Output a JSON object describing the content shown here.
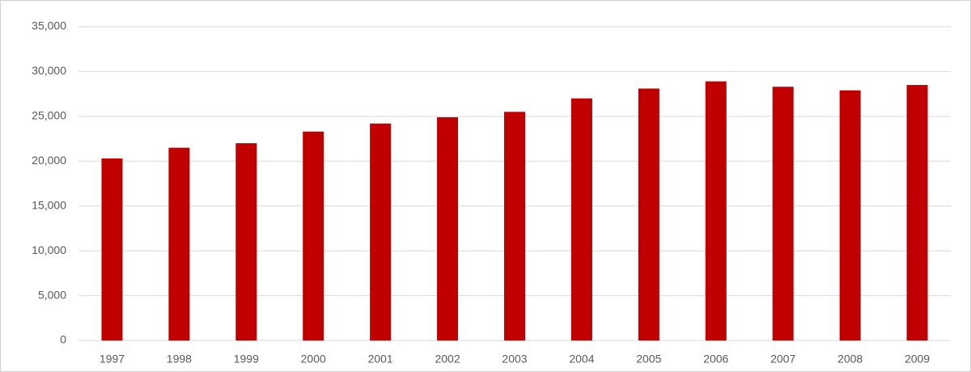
{
  "chart_data": {
    "type": "bar",
    "categories": [
      "1997",
      "1998",
      "1999",
      "2000",
      "2001",
      "2002",
      "2003",
      "2004",
      "2005",
      "2006",
      "2007",
      "2008",
      "2009"
    ],
    "values": [
      20300,
      21500,
      22000,
      23300,
      24200,
      24900,
      25500,
      27000,
      28100,
      28900,
      28300,
      27900,
      28500
    ],
    "color": "#c00000",
    "ylim": [
      0,
      35000
    ],
    "yticks": [
      0,
      {
        "value": 5000,
        "label": "5,000"
      },
      {
        "value": 10000,
        "label": "10,000"
      },
      {
        "value": 15000,
        "label": "15,000"
      },
      {
        "value": 20000,
        "label": "20,000"
      },
      {
        "value": 25000,
        "label": "25,000"
      },
      {
        "value": 30000,
        "label": "30,000"
      },
      {
        "value": 35000,
        "label": "35,000"
      }
    ],
    "grid": true
  }
}
